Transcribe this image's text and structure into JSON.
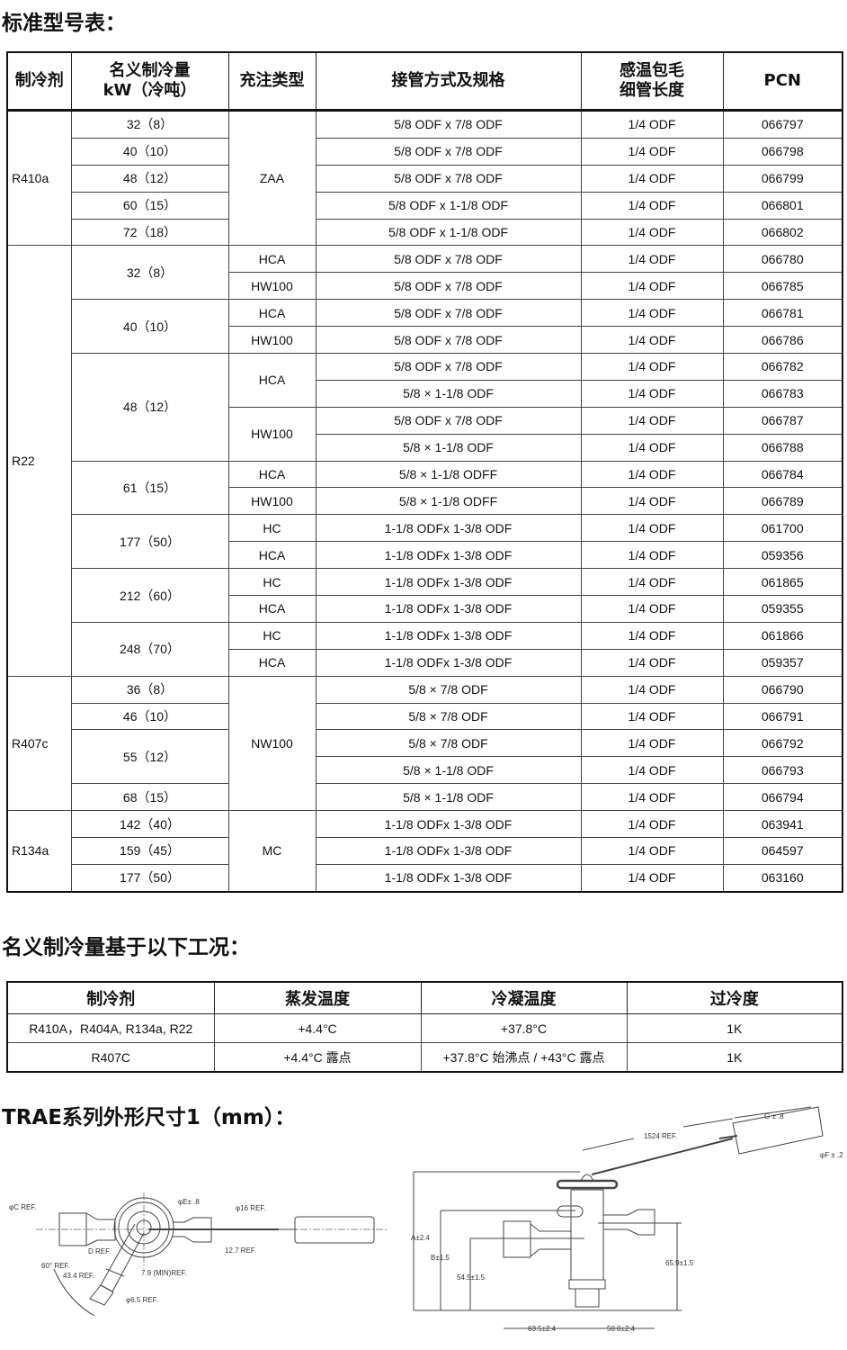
{
  "headings": {
    "models": "标准型号表：",
    "conditions": "名义制冷量基于以下工况：",
    "dimensions": "TRAE系列外形尺寸1（mm）："
  },
  "model_table": {
    "headers": [
      "制冷剂",
      "名义制冷量\nkW（冷吨）",
      "充注类型",
      "接管方式及规格",
      "感温包毛\n细管长度",
      "PCN"
    ],
    "rows": [
      [
        "R410a",
        "32（8）",
        "ZAA",
        "5/8 ODF x 7/8 ODF",
        "1/4 ODF",
        "066797"
      ],
      [
        "R410a",
        "40（10）",
        "ZAA",
        "5/8 ODF x 7/8 ODF",
        "1/4 ODF",
        "066798"
      ],
      [
        "R410a",
        "48（12）",
        "ZAA",
        "5/8 ODF x 7/8 ODF",
        "1/4 ODF",
        "066799"
      ],
      [
        "R410a",
        "60（15）",
        "ZAA",
        "5/8 ODF x 1-1/8 ODF",
        "1/4 ODF",
        "066801"
      ],
      [
        "R410a",
        "72（18）",
        "ZAA",
        "5/8 ODF x 1-1/8 ODF",
        "1/4 ODF",
        "066802"
      ],
      [
        "R22",
        "32（8）",
        "HCA",
        "5/8 ODF x 7/8 ODF",
        "1/4 ODF",
        "066780"
      ],
      [
        "R22",
        "32（8）",
        "HW100",
        "5/8 ODF x 7/8 ODF",
        "1/4 ODF",
        "066785"
      ],
      [
        "R22",
        "40（10）",
        "HCA",
        "5/8 ODF x 7/8 ODF",
        "1/4 ODF",
        "066781"
      ],
      [
        "R22",
        "40（10）",
        "HW100",
        "5/8 ODF x 7/8 ODF",
        "1/4 ODF",
        "066786"
      ],
      [
        "R22",
        "48（12）",
        "HCA",
        "5/8 ODF x 7/8 ODF",
        "1/4 ODF",
        "066782"
      ],
      [
        "R22",
        "48（12）",
        "HCA",
        "5/8 × 1-1/8 ODF",
        "1/4 ODF",
        "066783"
      ],
      [
        "R22",
        "48（12）",
        "HW100",
        "5/8 ODF x 7/8 ODF",
        "1/4 ODF",
        "066787"
      ],
      [
        "R22",
        "48（12）",
        "HW100",
        "5/8 × 1-1/8 ODF",
        "1/4 ODF",
        "066788"
      ],
      [
        "R22",
        "61（15）",
        "HCA",
        "5/8 × 1-1/8 ODFF",
        "1/4 ODF",
        "066784"
      ],
      [
        "R22",
        "61（15）",
        "HW100",
        "5/8 × 1-1/8 ODFF",
        "1/4 ODF",
        "066789"
      ],
      [
        "R22",
        "177（50）",
        "HC",
        "1-1/8 ODFx 1-3/8 ODF",
        "1/4 ODF",
        "061700"
      ],
      [
        "R22",
        "177（50）",
        "HCA",
        "1-1/8 ODFx 1-3/8 ODF",
        "1/4 ODF",
        "059356"
      ],
      [
        "R22",
        "212（60）",
        "HC",
        "1-1/8 ODFx 1-3/8 ODF",
        "1/4 ODF",
        "061865"
      ],
      [
        "R22",
        "212（60）",
        "HCA",
        "1-1/8 ODFx 1-3/8 ODF",
        "1/4 ODF",
        "059355"
      ],
      [
        "R22",
        "248（70）",
        "HC",
        "1-1/8 ODFx 1-3/8 ODF",
        "1/4 ODF",
        "061866"
      ],
      [
        "R22",
        "248（70）",
        "HCA",
        "1-1/8 ODFx 1-3/8 ODF",
        "1/4 ODF",
        "059357"
      ],
      [
        "R407c",
        "36（8）",
        "NW100",
        "5/8 × 7/8 ODF",
        "1/4 ODF",
        "066790"
      ],
      [
        "R407c",
        "46（10）",
        "NW100",
        "5/8 × 7/8 ODF",
        "1/4 ODF",
        "066791"
      ],
      [
        "R407c",
        "55（12）",
        "NW100",
        "5/8 × 7/8 ODF",
        "1/4 ODF",
        "066792"
      ],
      [
        "R407c",
        "55（12）",
        "NW100",
        "5/8 × 1-1/8 ODF",
        "1/4 ODF",
        "066793"
      ],
      [
        "R407c",
        "68（15）",
        "NW100",
        "5/8 × 1-1/8 ODF",
        "1/4 ODF",
        "066794"
      ],
      [
        "R134a",
        "142（40）",
        "MC",
        "1-1/8 ODFx 1-3/8 ODF",
        "1/4 ODF",
        "063941"
      ],
      [
        "R134a",
        "159（45）",
        "MC",
        "1-1/8 ODFx 1-3/8 ODF",
        "1/4 ODF",
        "064597"
      ],
      [
        "R134a",
        "177（50）",
        "MC",
        "1-1/8 ODFx 1-3/8 ODF",
        "1/4 ODF",
        "063160"
      ]
    ]
  },
  "conditions_table": {
    "headers": [
      "制冷剂",
      "蒸发温度",
      "冷凝温度",
      "过冷度"
    ],
    "rows": [
      [
        "R410A，R404A, R134a, R22",
        "+4.4°C",
        "+37.8°C",
        "1K"
      ],
      [
        "R407C",
        "+4.4°C 露点",
        "+37.8°C 始沸点 / +43°C 露点",
        "1K"
      ]
    ]
  },
  "drawing_top": {
    "labels": {
      "phi_c": "φC REF.",
      "phi_e": "φE± .8",
      "phi_16": "φ16 REF.",
      "d_ref": "D REF.",
      "r12_7": "12.7 REF.",
      "angle60": "60° REF.",
      "r43_4": "43.4 REF.",
      "r7_9": "7.9 (MIN)REF.",
      "phi_6_5": "φ6.5 REF."
    }
  },
  "drawing_side": {
    "labels": {
      "g": "G ± .8",
      "r1524": "1524 REF.",
      "phi_f": "φF ± .2",
      "a": "A±2.4",
      "b": "B±1.5",
      "d54_5": "54.5±1.5",
      "d65_9": "65.9±1.5",
      "d63_5": "63.5±2.4",
      "d50_0": "50.0±2.4"
    }
  }
}
